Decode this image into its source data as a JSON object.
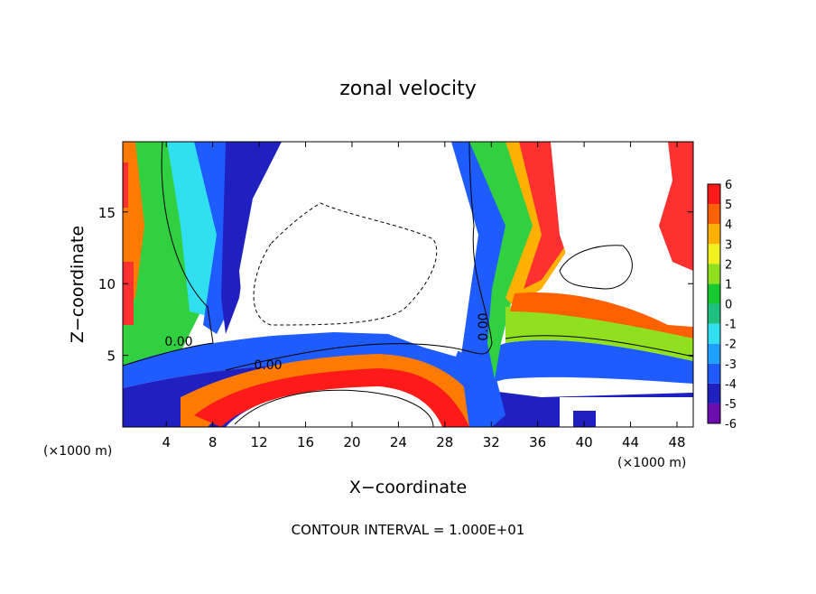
{
  "chart_data": {
    "type": "contour",
    "title": "zonal velocity",
    "x_label": "X−coordinate",
    "y_label": "Z−coordinate",
    "x_unit_left": "(×1000 m)",
    "x_unit_right": "(×1000 m)",
    "footer": "CONTOUR INTERVAL = 1.000E+01",
    "contour_labels": [
      "0.00",
      "0.00",
      "0.00"
    ],
    "xlim": [
      0.25,
      49.4
    ],
    "xticks": [
      4,
      8,
      12,
      16,
      20,
      24,
      28,
      32,
      36,
      40,
      44,
      48
    ],
    "ylim": [
      0,
      19.9
    ],
    "yticks": [
      5,
      10,
      15
    ],
    "colorbar": {
      "ticks": [
        -6,
        -5,
        -4,
        -3,
        -2,
        -1,
        0,
        1,
        2,
        3,
        4,
        5,
        6
      ],
      "colors": [
        "#6a0dad",
        "#2020c0",
        "#1e5cff",
        "#1ea0ff",
        "#30e0f0",
        "#20c080",
        "#18c830",
        "#90e020",
        "#f0f020",
        "#ffb000",
        "#ff6000",
        "#ff1a1a",
        "#ff9090"
      ]
    }
  }
}
